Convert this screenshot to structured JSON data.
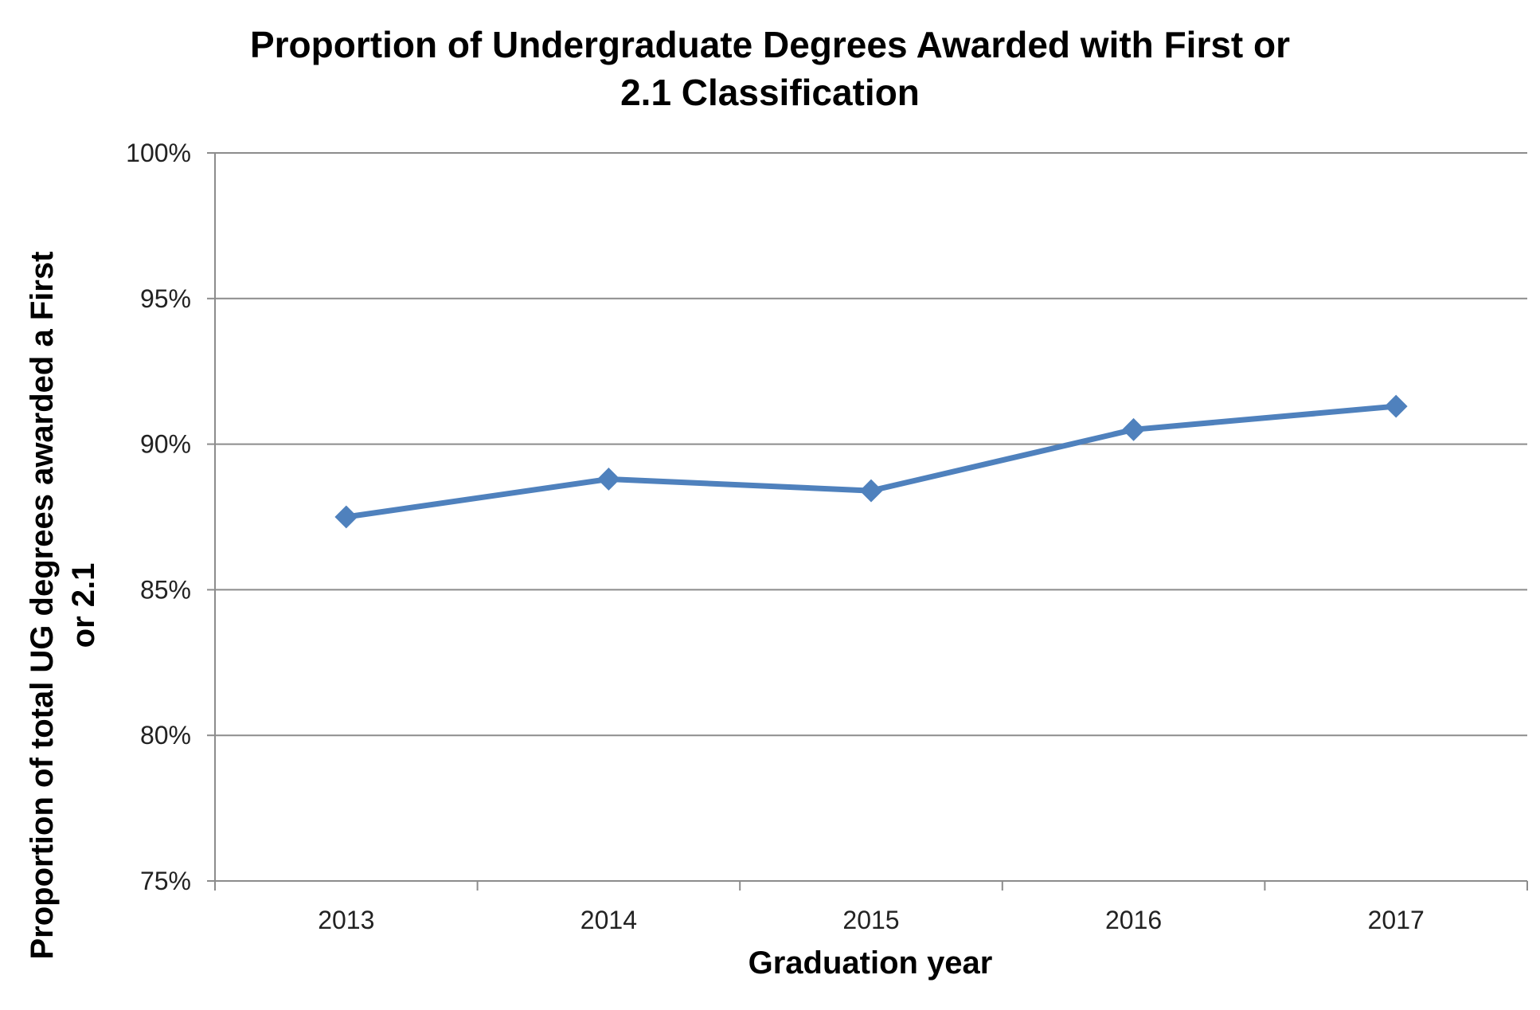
{
  "chart_data": {
    "type": "line",
    "title_line1": "Proportion of Undergraduate Degrees Awarded with First or",
    "title_line2": "2.1 Classification",
    "xlabel": "Graduation year",
    "ylabel_line1": "Proportion of total UG degrees awarded a First",
    "ylabel_line2": "or 2.1",
    "categories": [
      "2013",
      "2014",
      "2015",
      "2016",
      "2017"
    ],
    "series": [
      {
        "values": [
          87.5,
          88.8,
          88.4,
          90.5,
          91.3
        ],
        "color": "#4f81bd",
        "marker": "diamond"
      }
    ],
    "ylim": [
      75,
      100
    ],
    "yticks": [
      75,
      80,
      85,
      90,
      95,
      100
    ],
    "ytick_labels": [
      "75%",
      "80%",
      "85%",
      "90%",
      "95%",
      "100%"
    ],
    "grid": true,
    "legend": "none"
  }
}
